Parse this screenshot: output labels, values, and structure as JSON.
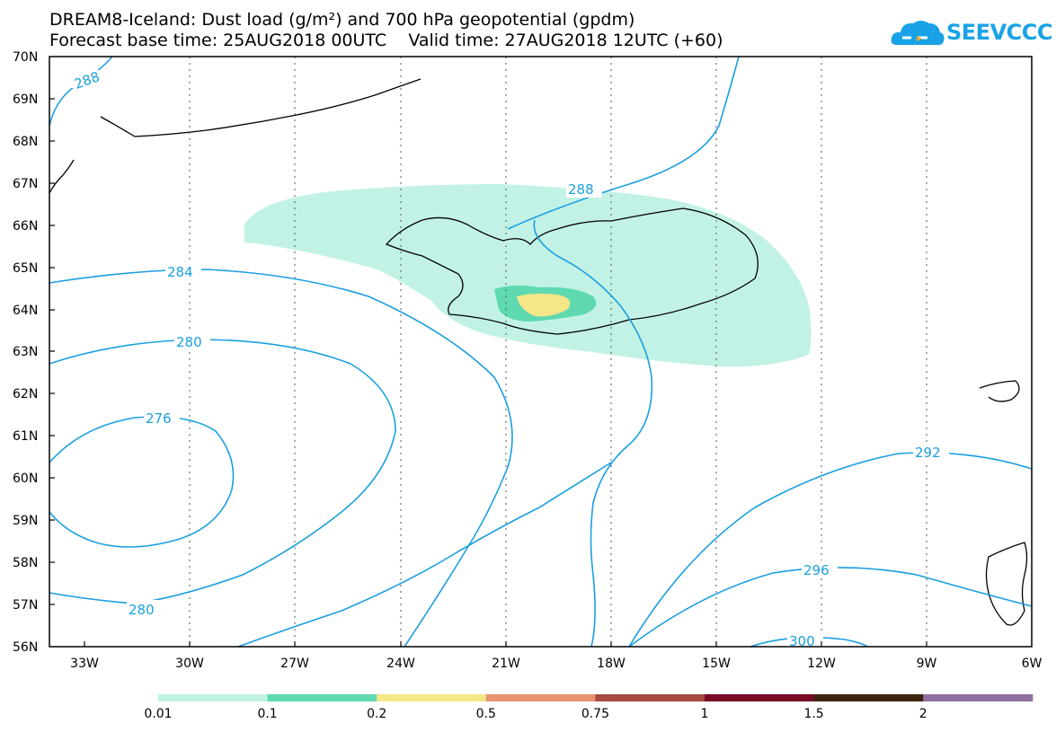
{
  "header": {
    "title_line1": "DREAM8-Iceland: Dust load (g/m²) and 700 hPa geopotential (gpdm)",
    "title_line2": "Forecast base time: 25AUG2018 00UTC    Valid time: 27AUG2018 12UTC (+60)"
  },
  "logo": {
    "text": "SEEVCCC",
    "icon": "cloud-icon",
    "color": "#19a3e6"
  },
  "map": {
    "lat_labels": [
      "70N",
      "69N",
      "68N",
      "67N",
      "66N",
      "65N",
      "64N",
      "63N",
      "62N",
      "61N",
      "60N",
      "59N",
      "58N",
      "57N",
      "56N"
    ],
    "lon_labels": [
      "33W",
      "30W",
      "27W",
      "24W",
      "21W",
      "18W",
      "15W",
      "12W",
      "9W",
      "6W"
    ],
    "contour_color": "#1a9fe0",
    "contour_labels": [
      "288",
      "288",
      "284",
      "280",
      "276",
      "280",
      "292",
      "296",
      "300"
    ]
  },
  "legend": {
    "colors": [
      "#c2f2e6",
      "#5ed9b0",
      "#f5e687",
      "#e89470",
      "#a84a40",
      "#7a0a25",
      "#3d2510",
      "#9070a0"
    ],
    "labels": [
      "0.01",
      "0.1",
      "0.2",
      "0.5",
      "0.75",
      "1",
      "1.5",
      "2"
    ]
  }
}
